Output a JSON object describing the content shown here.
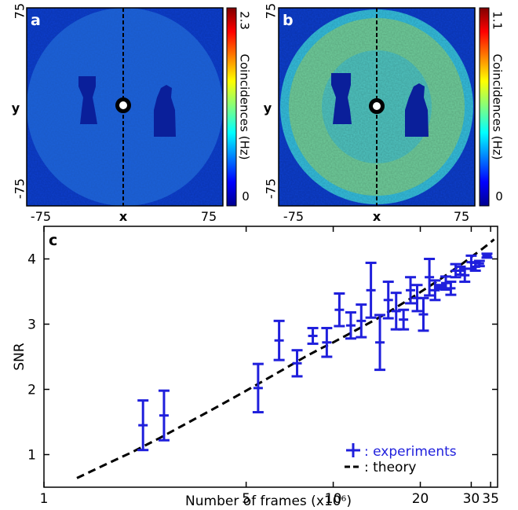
{
  "panel_a": {
    "label": "a",
    "xlabel": "x",
    "ylabel": "y",
    "x_ticks": [
      "-75",
      "75"
    ],
    "y_ticks": [
      "75",
      "-75"
    ],
    "colorbar_label": "Coincidences (Hz)",
    "colorbar_ticks": [
      "2.3",
      "0"
    ],
    "colorbar_max": 2.3,
    "colormap": "jet"
  },
  "panel_b": {
    "label": "b",
    "xlabel": "x",
    "ylabel": "y",
    "x_ticks": [
      "-75",
      "75"
    ],
    "y_ticks": [
      "75",
      "-75"
    ],
    "colorbar_label": "Coincidences (Hz)",
    "colorbar_ticks": [
      "1.1",
      "0"
    ],
    "colorbar_max": 1.1,
    "colormap": "jet"
  },
  "chart_data": {
    "label": "c",
    "type": "scatter",
    "xlabel": "Number of frames (x10⁶)",
    "ylabel": "SNR",
    "xscale": "log",
    "xlim": [
      1,
      37
    ],
    "ylim": [
      0.5,
      4.5
    ],
    "x_ticks": [
      {
        "value": 1,
        "label": "1"
      },
      {
        "value": 5,
        "label": "5"
      },
      {
        "value": 10,
        "label": "10"
      },
      {
        "value": 20,
        "label": "20"
      },
      {
        "value": 30,
        "label": "30"
      },
      {
        "value": 35,
        "label": "35"
      }
    ],
    "y_ticks": [
      1,
      2,
      3,
      4
    ],
    "legend_position": "bottom-right",
    "experiments": {
      "name": "experiments",
      "color": "#1f1fdc",
      "points": [
        {
          "x": 2.2,
          "y": 1.45,
          "err": 0.38
        },
        {
          "x": 2.6,
          "y": 1.6,
          "err": 0.38
        },
        {
          "x": 5.5,
          "y": 2.02,
          "err": 0.37
        },
        {
          "x": 6.5,
          "y": 2.75,
          "err": 0.3
        },
        {
          "x": 7.5,
          "y": 2.4,
          "err": 0.2
        },
        {
          "x": 8.5,
          "y": 2.82,
          "err": 0.12
        },
        {
          "x": 9.5,
          "y": 2.72,
          "err": 0.22
        },
        {
          "x": 10.5,
          "y": 3.22,
          "err": 0.25
        },
        {
          "x": 11.5,
          "y": 2.98,
          "err": 0.2
        },
        {
          "x": 12.5,
          "y": 3.05,
          "err": 0.25
        },
        {
          "x": 13.5,
          "y": 3.52,
          "err": 0.42
        },
        {
          "x": 14.5,
          "y": 2.72,
          "err": 0.42
        },
        {
          "x": 15.5,
          "y": 3.37,
          "err": 0.28
        },
        {
          "x": 16.5,
          "y": 3.2,
          "err": 0.28
        },
        {
          "x": 17.5,
          "y": 3.07,
          "err": 0.15
        },
        {
          "x": 18.5,
          "y": 3.52,
          "err": 0.2
        },
        {
          "x": 19.5,
          "y": 3.4,
          "err": 0.2
        },
        {
          "x": 20.5,
          "y": 3.15,
          "err": 0.25
        },
        {
          "x": 21.5,
          "y": 3.72,
          "err": 0.28
        },
        {
          "x": 22.5,
          "y": 3.52,
          "err": 0.15
        },
        {
          "x": 23.5,
          "y": 3.57,
          "err": 0.03
        },
        {
          "x": 24.5,
          "y": 3.63,
          "err": 0.1
        },
        {
          "x": 25.5,
          "y": 3.55,
          "err": 0.1
        },
        {
          "x": 26.5,
          "y": 3.82,
          "err": 0.1
        },
        {
          "x": 27.5,
          "y": 3.82,
          "err": 0.06
        },
        {
          "x": 28.5,
          "y": 3.75,
          "err": 0.1
        },
        {
          "x": 30,
          "y": 3.95,
          "err": 0.1
        },
        {
          "x": 31,
          "y": 3.88,
          "err": 0.06
        },
        {
          "x": 32,
          "y": 3.93,
          "err": 0.04
        },
        {
          "x": 34,
          "y": 4.05,
          "err": 0.03
        }
      ]
    },
    "theory": {
      "name": "theory",
      "color": "#000000",
      "style": "dashed",
      "x": [
        1.3,
        1.6,
        2,
        2.5,
        3,
        4,
        5,
        6,
        7,
        8,
        9,
        10,
        12,
        14,
        16,
        18,
        20,
        22,
        24,
        26,
        28,
        30,
        32,
        34,
        36
      ],
      "y": [
        0.64,
        0.83,
        1.03,
        1.25,
        1.44,
        1.74,
        1.98,
        2.18,
        2.35,
        2.5,
        2.62,
        2.72,
        2.91,
        3.07,
        3.22,
        3.36,
        3.49,
        3.61,
        3.72,
        3.83,
        3.93,
        4.03,
        4.12,
        4.21,
        4.3
      ]
    }
  }
}
